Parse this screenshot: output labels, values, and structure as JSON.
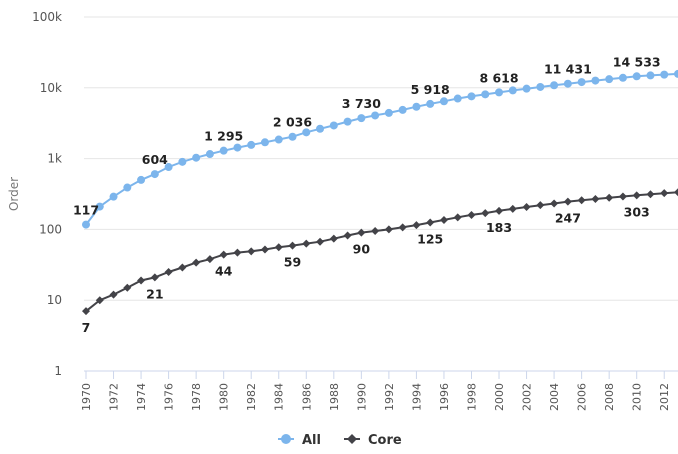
{
  "chart_data": {
    "type": "line",
    "ylabel": "Order",
    "yscale": "log",
    "ylim": [
      1,
      100000
    ],
    "y_ticks": [
      {
        "value": 1,
        "label": "1"
      },
      {
        "value": 10,
        "label": "10"
      },
      {
        "value": 100,
        "label": "100"
      },
      {
        "value": 1000,
        "label": "1k"
      },
      {
        "value": 10000,
        "label": "10k"
      },
      {
        "value": 100000,
        "label": "100k"
      }
    ],
    "x_ticks": [
      1970,
      1972,
      1974,
      1976,
      1978,
      1980,
      1982,
      1984,
      1986,
      1988,
      1990,
      1992,
      1994,
      1996,
      1998,
      2000,
      2002,
      2004,
      2006,
      2008,
      2010,
      2012
    ],
    "x": [
      1970,
      1971,
      1972,
      1973,
      1974,
      1975,
      1976,
      1977,
      1978,
      1979,
      1980,
      1981,
      1982,
      1983,
      1984,
      1985,
      1986,
      1987,
      1988,
      1989,
      1990,
      1991,
      1992,
      1993,
      1994,
      1995,
      1996,
      1997,
      1998,
      1999,
      2000,
      2001,
      2002,
      2003,
      2004,
      2005,
      2006,
      2007,
      2008,
      2009,
      2010,
      2011,
      2012,
      2013
    ],
    "grid": true,
    "legend_position": "bottom",
    "series": [
      {
        "name": "All",
        "color": "#7cb5ec",
        "marker": "circle",
        "values": [
          117,
          210,
          290,
          390,
          500,
          604,
          760,
          900,
          1030,
          1160,
          1295,
          1430,
          1560,
          1700,
          1860,
          2036,
          2350,
          2640,
          2940,
          3330,
          3730,
          4070,
          4420,
          4870,
          5400,
          5918,
          6450,
          7050,
          7580,
          8080,
          8618,
          9180,
          9720,
          10280,
          10860,
          11431,
          12050,
          12650,
          13250,
          13850,
          14533,
          14950,
          15350,
          15700
        ],
        "data_labels": [
          {
            "x": 1970,
            "text": "117"
          },
          {
            "x": 1975,
            "text": "604"
          },
          {
            "x": 1980,
            "text": "1 295"
          },
          {
            "x": 1985,
            "text": "2 036"
          },
          {
            "x": 1990,
            "text": "3 730"
          },
          {
            "x": 1995,
            "text": "5 918"
          },
          {
            "x": 2000,
            "text": "8 618"
          },
          {
            "x": 2005,
            "text": "11 431"
          },
          {
            "x": 2010,
            "text": "14 533"
          }
        ]
      },
      {
        "name": "Core",
        "color": "#434348",
        "marker": "diamond",
        "values": [
          7,
          10,
          12,
          15,
          19,
          21,
          25,
          29,
          34,
          38,
          44,
          47,
          49,
          52,
          56,
          59,
          63,
          67,
          74,
          82,
          90,
          95,
          100,
          107,
          115,
          125,
          136,
          148,
          160,
          170,
          183,
          195,
          207,
          220,
          232,
          247,
          258,
          269,
          280,
          292,
          303,
          314,
          325,
          335
        ],
        "data_labels": [
          {
            "x": 1970,
            "text": "7"
          },
          {
            "x": 1975,
            "text": "21"
          },
          {
            "x": 1980,
            "text": "44"
          },
          {
            "x": 1985,
            "text": "59"
          },
          {
            "x": 1990,
            "text": "90"
          },
          {
            "x": 1995,
            "text": "125"
          },
          {
            "x": 2000,
            "text": "183"
          },
          {
            "x": 2005,
            "text": "247"
          },
          {
            "x": 2010,
            "text": "303"
          }
        ]
      }
    ]
  }
}
